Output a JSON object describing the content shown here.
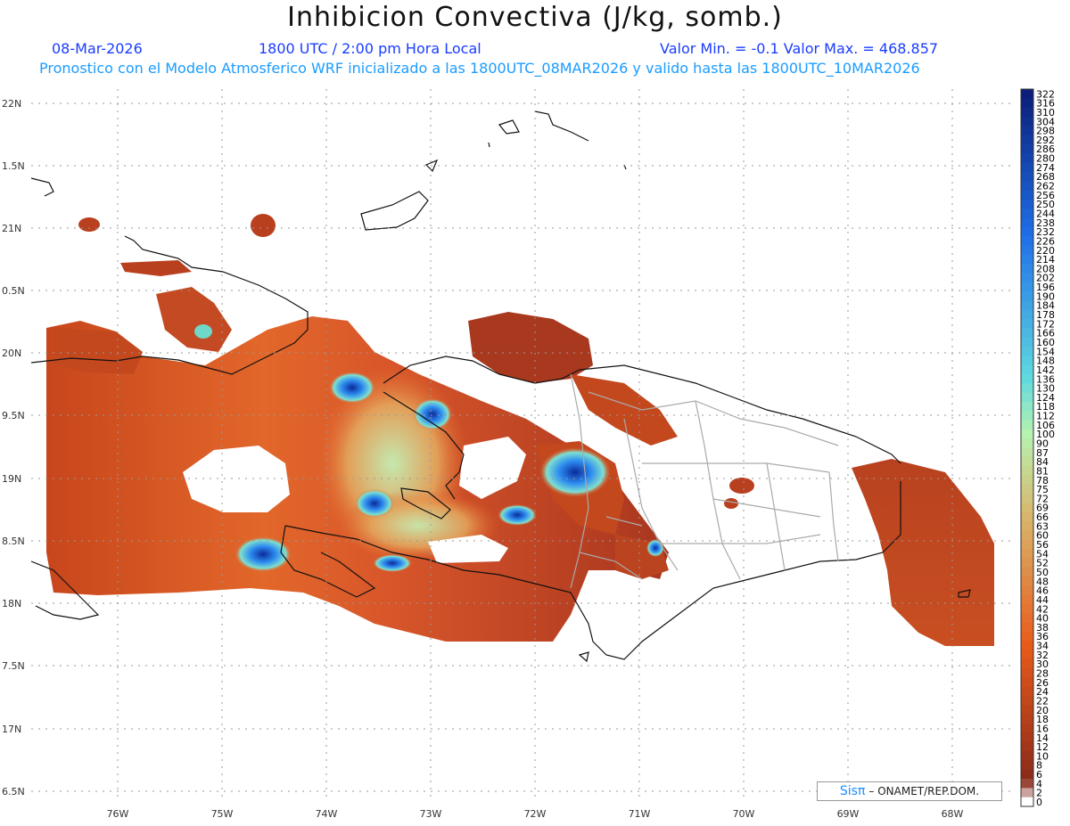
{
  "header": {
    "title": "Inhibicion Convectiva (J/kg, somb.)",
    "date": "08-Mar-2026",
    "time": "1800 UTC / 2:00 pm Hora Local",
    "minmax": "Valor Min. = -0.1  Valor Max. = 468.857",
    "description": "Pronostico con el Modelo Atmosferico WRF inicializado a las 1800UTC_08MAR2026 y valido hasta las  1800UTC_10MAR2026"
  },
  "axes": {
    "lat_labels": [
      "22N",
      "1.5N",
      "21N",
      "0.5N",
      "20N",
      "9.5N",
      "19N",
      "8.5N",
      "18N",
      "7.5N",
      "17N",
      "6.5N"
    ],
    "lon_labels": [
      "76W",
      "75W",
      "74W",
      "73W",
      "72W",
      "71W",
      "70W",
      "69W",
      "68W"
    ]
  },
  "colorbar": {
    "labels": [
      "322",
      "316",
      "310",
      "304",
      "298",
      "292",
      "286",
      "280",
      "274",
      "268",
      "262",
      "256",
      "250",
      "244",
      "238",
      "232",
      "226",
      "220",
      "214",
      "208",
      "202",
      "196",
      "190",
      "184",
      "178",
      "172",
      "166",
      "160",
      "154",
      "148",
      "142",
      "136",
      "130",
      "124",
      "118",
      "112",
      "106",
      "100",
      "90",
      "87",
      "84",
      "81",
      "78",
      "75",
      "72",
      "69",
      "66",
      "63",
      "60",
      "56",
      "54",
      "52",
      "50",
      "48",
      "46",
      "44",
      "42",
      "40",
      "38",
      "36",
      "34",
      "32",
      "30",
      "28",
      "26",
      "24",
      "22",
      "20",
      "18",
      "16",
      "14",
      "12",
      "10",
      "8",
      "6",
      "4",
      "2",
      "0"
    ],
    "colors": {
      "top": "#0b1f7a",
      "blue": "#1f6fe8",
      "cyan": "#5fd8e0",
      "green": "#b6f2b0",
      "tan": "#d9b46a",
      "orange": "#e85a1a",
      "brown": "#8a2a1a",
      "zero": "#ffffff"
    }
  },
  "credit": {
    "logo": "Sisπ",
    "text": "– ONAMET/REP.DOM."
  }
}
